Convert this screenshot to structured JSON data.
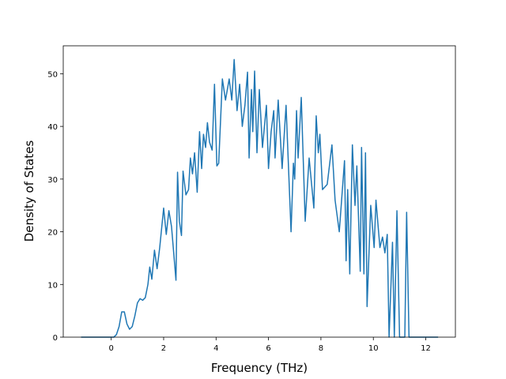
{
  "chart_data": {
    "type": "line",
    "x_label": "Frequency (THz)",
    "y_label": "Density of States",
    "x": [
      -1.15,
      0.1,
      0.2,
      0.3,
      0.4,
      0.5,
      0.6,
      0.7,
      0.8,
      0.9,
      1.0,
      1.1,
      1.2,
      1.3,
      1.4,
      1.47,
      1.55,
      1.65,
      1.75,
      1.85,
      2.0,
      2.1,
      2.2,
      2.3,
      2.47,
      2.53,
      2.6,
      2.68,
      2.74,
      2.85,
      2.95,
      3.02,
      3.1,
      3.18,
      3.28,
      3.37,
      3.45,
      3.52,
      3.6,
      3.67,
      3.75,
      3.85,
      3.94,
      4.03,
      4.1,
      4.24,
      4.36,
      4.5,
      4.6,
      4.69,
      4.8,
      4.9,
      5.0,
      5.1,
      5.2,
      5.26,
      5.35,
      5.4,
      5.47,
      5.56,
      5.65,
      5.77,
      5.92,
      6.0,
      6.1,
      6.2,
      6.25,
      6.37,
      6.52,
      6.67,
      6.86,
      6.95,
      7.0,
      7.07,
      7.13,
      7.25,
      7.4,
      7.55,
      7.73,
      7.82,
      7.9,
      7.96,
      8.06,
      8.24,
      8.42,
      8.54,
      8.7,
      8.9,
      8.96,
      9.02,
      9.1,
      9.2,
      9.3,
      9.37,
      9.5,
      9.55,
      9.64,
      9.7,
      9.76,
      9.9,
      10.03,
      10.1,
      10.25,
      10.35,
      10.44,
      10.53,
      10.6,
      10.73,
      10.8,
      10.9,
      11.0,
      11.2,
      11.27,
      11.36,
      12.47
    ],
    "series": [
      {
        "color": "#1f77b4",
        "values": [
          0,
          0,
          0.5,
          2,
          4.8,
          4.8,
          2.5,
          1.5,
          2,
          4,
          6.5,
          7.3,
          7,
          7.5,
          10,
          13.3,
          11,
          16.5,
          13,
          17,
          24.5,
          19.5,
          24,
          21,
          10.8,
          31.3,
          22,
          19.3,
          31.5,
          27,
          28,
          34,
          31,
          35,
          27.5,
          39,
          32,
          38.5,
          36,
          40.7,
          37,
          35.5,
          48,
          32.5,
          33,
          49,
          45,
          49,
          45,
          52.7,
          43,
          48,
          40,
          44,
          50.3,
          34,
          47,
          39,
          50.5,
          35,
          47,
          36,
          44,
          32,
          39,
          43,
          34,
          45,
          32,
          44,
          20,
          33,
          30,
          43,
          34,
          45.5,
          22,
          34,
          24.5,
          42,
          35,
          38.5,
          28,
          29,
          36.5,
          26,
          20,
          33.5,
          14.5,
          28,
          12,
          36.5,
          25,
          32.5,
          12.5,
          36,
          12,
          35,
          5.8,
          25,
          17,
          26,
          17,
          19,
          16,
          19.5,
          0,
          18,
          0,
          24,
          0,
          0,
          23.7,
          0,
          0
        ]
      }
    ],
    "xlim": [
      -1.83,
      13.13
    ],
    "ylim": [
      0,
      55.3
    ],
    "xticks": [
      0,
      2,
      4,
      6,
      8,
      10,
      12
    ],
    "yticks": [
      0,
      10,
      20,
      30,
      40,
      50
    ],
    "grid": false
  }
}
